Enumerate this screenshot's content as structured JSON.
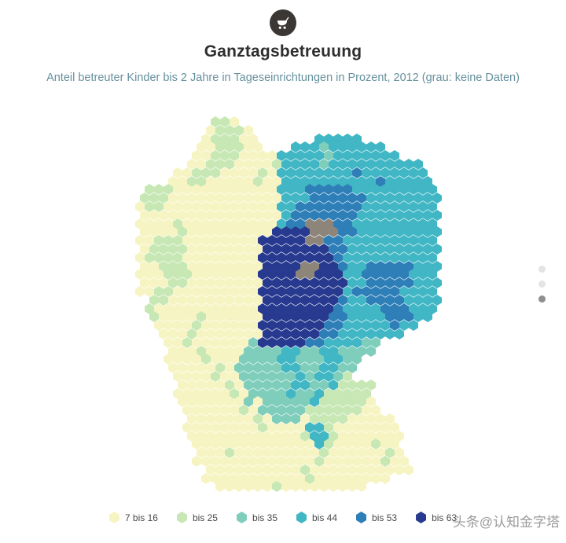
{
  "header": {
    "title": "Ganztagsbetreuung",
    "subtitle": "Anteil betreuter Kinder bis 2 Jahre in Tageseinrichtungen in Prozent, 2012 (grau: keine Daten)"
  },
  "chart_data": {
    "type": "hexmap",
    "region": "Deutschland",
    "title": "Ganztagsbetreuung",
    "subtitle": "Anteil betreuter Kinder bis 2 Jahre in Tageseinrichtungen in Prozent, 2012",
    "unit": "Prozent",
    "year": "2012",
    "legend": [
      {
        "label": "7 bis 16",
        "color": "#f7f4c3"
      },
      {
        "label": "bis 25",
        "color": "#c7e8b4"
      },
      {
        "label": "bis 35",
        "color": "#7fcdbb"
      },
      {
        "label": "bis 44",
        "color": "#41b6c4"
      },
      {
        "label": "bis 53",
        "color": "#2e7eb8"
      },
      {
        "label": "bis 63",
        "color": "#273a8f"
      }
    ],
    "no_data": {
      "label": "keine Daten",
      "color": "#8d8579"
    },
    "colors": {
      "1": "#f7f4c3",
      "2": "#c7e8b4",
      "3": "#7fcdbb",
      "4": "#41b6c4",
      "5": "#2e7eb8",
      "6": "#273a8f",
      "g": "#8d8579"
    },
    "grid": {
      "cols": 33,
      "rows": 44,
      "layout": "odd-row-offset"
    },
    "hex_rows": [
      ".........221.....................",
      "........12221....................",
      "........122211......44444........",
      ".......1122211...4443444444......",
      ".......1122211114444434444444....",
      "......1122211112444434444444444..",
      ".....112221111214444444454444444.",
      "....1122111112114444444444544444.",
      "..2221111111111144455555444444444",
      ".22211111111111144455555544444444",
      ".12211111111111144555555544444444",
      ".11111111111111145555555444444444",
      ".111121111111111455ggg55444444444",
      ".111121111111116666ggg55444444444",
      ".112221111111166666gg554444444444",
      ".12222111111116666666554444444444",
      ".12222111111116666666654444444444",
      ".11222111111116666gg6654455555444",
      ".11122211111116666gg6664455555444",
      ".11122111111116666666664455555444",
      ".11221111111116666666664555554444",
      "..2211111111116666666654455554444",
      "..2111111111116666666654444555444",
      "..211112111111666666655444455544.",
      "...1111211111166666665544444544..",
      "...11121111111666666554444444....",
      "....11211111136666655444433......",
      "....1112111133334433443333.......",
      "....111121113333443334433........",
      "....11111213333344334433.........",
      ".....1111211333333434432.........",
      ".....111112133333443342222.......",
      ".....111111213333433422222.......",
      ".....111111131333334222221.......",
      "......111111213333322222211......",
      "......1111111213331222211111.....",
      "......11111111211114421111111....",
      "......11111111111124421111111....",
      ".......1111111111111421111211....",
      ".......1112111111111211111121....",
      ".......11111111111112111111211...",
      "........1111111111211111111111...",
      "........11111111111211111111.....",
      ".........1111112111111111........"
    ]
  },
  "carousel": {
    "dots": [
      {
        "active": false
      },
      {
        "active": false
      },
      {
        "active": true
      }
    ]
  },
  "watermark": "头条@认知金字塔"
}
